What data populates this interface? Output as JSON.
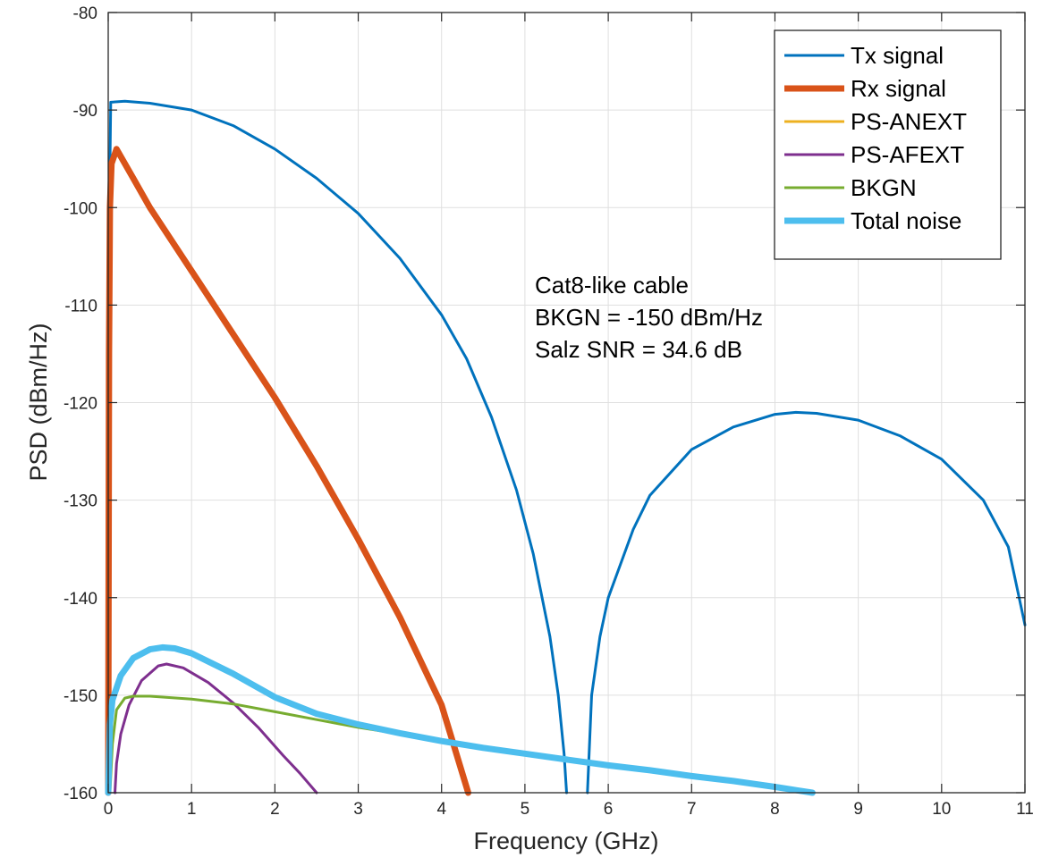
{
  "chart_data": {
    "type": "line",
    "title": "",
    "xlabel": "Frequency (GHz)",
    "ylabel": "PSD (dBm/Hz)",
    "xlim": [
      0,
      11
    ],
    "ylim": [
      -160,
      -80
    ],
    "xticks": [
      0,
      1,
      2,
      3,
      4,
      5,
      6,
      7,
      8,
      9,
      10,
      11
    ],
    "yticks": [
      -160,
      -150,
      -140,
      -130,
      -120,
      -110,
      -100,
      -90,
      -80
    ],
    "grid": true,
    "legend_position": "top-right",
    "annotations": [
      "Cat8-like cable",
      "BKGN = -150 dBm/Hz",
      "Salz SNR = 34.6 dB"
    ],
    "series": [
      {
        "name": "Tx signal",
        "color": "#0072BD",
        "width": "normal",
        "segments": [
          [
            [
              0.02,
              -160
            ],
            [
              0.02,
              -96
            ],
            [
              0.03,
              -89.2
            ],
            [
              0.2,
              -89.1
            ],
            [
              0.5,
              -89.3
            ],
            [
              1.0,
              -90.0
            ],
            [
              1.5,
              -91.6
            ],
            [
              2.0,
              -94.0
            ],
            [
              2.5,
              -97.0
            ],
            [
              3.0,
              -100.6
            ],
            [
              3.5,
              -105.2
            ],
            [
              4.0,
              -111.0
            ],
            [
              4.3,
              -115.5
            ],
            [
              4.6,
              -121.5
            ],
            [
              4.9,
              -129.0
            ],
            [
              5.1,
              -135.5
            ],
            [
              5.3,
              -144.0
            ],
            [
              5.4,
              -150.0
            ],
            [
              5.47,
              -156.0
            ],
            [
              5.5,
              -160
            ]
          ],
          [
            [
              5.75,
              -160
            ],
            [
              5.8,
              -150.0
            ],
            [
              5.9,
              -144.0
            ],
            [
              6.0,
              -140.0
            ],
            [
              6.3,
              -133.0
            ],
            [
              6.5,
              -129.5
            ],
            [
              7.0,
              -124.8
            ],
            [
              7.5,
              -122.5
            ],
            [
              8.0,
              -121.2
            ],
            [
              8.25,
              -121.0
            ],
            [
              8.5,
              -121.1
            ],
            [
              9.0,
              -121.8
            ],
            [
              9.5,
              -123.4
            ],
            [
              10.0,
              -125.8
            ],
            [
              10.5,
              -130.0
            ],
            [
              10.8,
              -134.8
            ],
            [
              11.0,
              -142.8
            ]
          ]
        ]
      },
      {
        "name": "Rx signal",
        "color": "#D95319",
        "width": "thick",
        "segments": [
          [
            [
              0.0,
              -160
            ],
            [
              0.01,
              -115
            ],
            [
              0.02,
              -100
            ],
            [
              0.04,
              -95.5
            ],
            [
              0.1,
              -94.0
            ],
            [
              0.3,
              -97.0
            ],
            [
              0.5,
              -100.0
            ],
            [
              1.0,
              -106.5
            ],
            [
              1.5,
              -113.0
            ],
            [
              2.0,
              -119.5
            ],
            [
              2.5,
              -126.5
            ],
            [
              3.0,
              -134.0
            ],
            [
              3.5,
              -142.0
            ],
            [
              4.0,
              -151.0
            ],
            [
              4.32,
              -160
            ]
          ]
        ]
      },
      {
        "name": "PS-ANEXT",
        "color": "#EDB120",
        "width": "normal",
        "segments": []
      },
      {
        "name": "PS-AFEXT",
        "color": "#7E2F8E",
        "width": "normal",
        "segments": [
          [
            [
              0.08,
              -160
            ],
            [
              0.1,
              -157.0
            ],
            [
              0.15,
              -154.0
            ],
            [
              0.25,
              -151.0
            ],
            [
              0.4,
              -148.5
            ],
            [
              0.6,
              -147.0
            ],
            [
              0.7,
              -146.8
            ],
            [
              0.9,
              -147.2
            ],
            [
              1.2,
              -148.7
            ],
            [
              1.5,
              -150.8
            ],
            [
              1.8,
              -153.3
            ],
            [
              2.1,
              -156.2
            ],
            [
              2.3,
              -158.0
            ],
            [
              2.5,
              -160
            ]
          ]
        ]
      },
      {
        "name": "BKGN",
        "color": "#77AC30",
        "width": "normal",
        "segments": [
          [
            [
              0.02,
              -160
            ],
            [
              0.05,
              -155.0
            ],
            [
              0.1,
              -151.5
            ],
            [
              0.2,
              -150.3
            ],
            [
              0.3,
              -150.1
            ],
            [
              0.5,
              -150.1
            ],
            [
              1.0,
              -150.4
            ],
            [
              1.5,
              -150.9
            ],
            [
              2.0,
              -151.7
            ],
            [
              2.5,
              -152.5
            ],
            [
              3.0,
              -153.3
            ],
            [
              3.3,
              -153.7
            ]
          ]
        ]
      },
      {
        "name": "Total noise",
        "color": "#4DBEEE",
        "width": "thick",
        "segments": [
          [
            [
              0.0,
              -160
            ],
            [
              0.02,
              -153.0
            ],
            [
              0.05,
              -150.5
            ],
            [
              0.15,
              -148.0
            ],
            [
              0.3,
              -146.2
            ],
            [
              0.5,
              -145.3
            ],
            [
              0.65,
              -145.1
            ],
            [
              0.8,
              -145.2
            ],
            [
              1.0,
              -145.7
            ],
            [
              1.5,
              -147.8
            ],
            [
              2.0,
              -150.2
            ],
            [
              2.5,
              -151.9
            ],
            [
              3.0,
              -153.0
            ],
            [
              3.5,
              -153.9
            ],
            [
              4.0,
              -154.7
            ],
            [
              4.5,
              -155.4
            ],
            [
              5.0,
              -156.0
            ],
            [
              5.5,
              -156.6
            ],
            [
              6.0,
              -157.2
            ],
            [
              6.5,
              -157.7
            ],
            [
              7.0,
              -158.3
            ],
            [
              7.5,
              -158.8
            ],
            [
              8.0,
              -159.4
            ],
            [
              8.45,
              -160
            ]
          ]
        ]
      }
    ]
  }
}
